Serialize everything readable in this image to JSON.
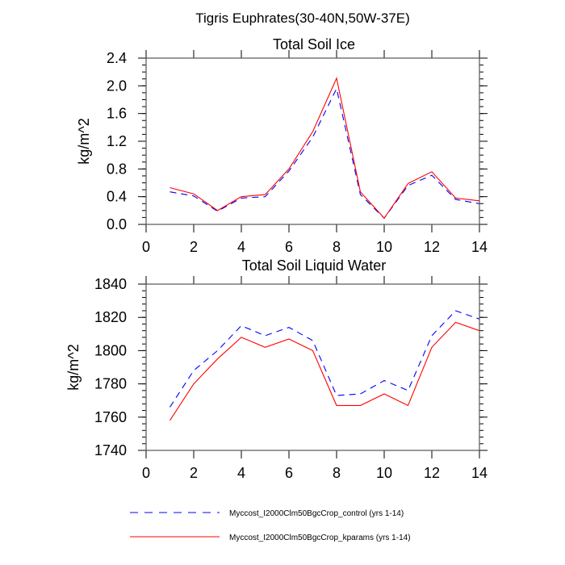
{
  "figure": {
    "suptitle": "Tigris Euphrates(30-40N,50W-37E)",
    "colors": {
      "control": "#0000ff",
      "kparams": "#ff0000",
      "axis": "#000000"
    }
  },
  "legend": {
    "placement": "bottom-center",
    "entries": [
      {
        "label": "Myccost_I2000Clm50BgcCrop_control (yrs 1-14)",
        "style": "dashed",
        "color": "#0000ff"
      },
      {
        "label": "Myccost_I2000Clm50BgcCrop_kparams (yrs 1-14)",
        "style": "solid",
        "color": "#ff0000"
      }
    ]
  },
  "chart_data": [
    {
      "type": "line",
      "title": "Total Soil Ice",
      "xlabel": "",
      "ylabel": "kg/m^2",
      "xlim": [
        0,
        14
      ],
      "ylim": [
        0,
        2.4
      ],
      "xticks": [
        0,
        2,
        4,
        6,
        8,
        10,
        12,
        14
      ],
      "xtick_labels": [
        "0",
        "2",
        "4",
        "6",
        "8",
        "10",
        "12",
        "14"
      ],
      "yticks": [
        0,
        0.4,
        0.8,
        1.2,
        1.6,
        2.0,
        2.4
      ],
      "ytick_labels": [
        "0.0",
        "0.4",
        "0.8",
        "1.2",
        "1.6",
        "2.0",
        "2.4"
      ],
      "yminor_step": 0.1,
      "grid": false,
      "x": [
        1,
        2,
        3,
        4,
        5,
        6,
        7,
        8,
        9,
        10,
        11,
        12,
        13,
        14
      ],
      "series": [
        {
          "name": "Myccost_I2000Clm50BgcCrop_control (yrs 1-14)",
          "style": "dashed",
          "color": "#0000ff",
          "values": [
            0.47,
            0.41,
            0.19,
            0.38,
            0.4,
            0.77,
            1.26,
            1.96,
            0.43,
            0.09,
            0.56,
            0.71,
            0.36,
            0.3
          ]
        },
        {
          "name": "Myccost_I2000Clm50BgcCrop_kparams (yrs 1-14)",
          "style": "solid",
          "color": "#ff0000",
          "values": [
            0.53,
            0.44,
            0.2,
            0.4,
            0.43,
            0.8,
            1.34,
            2.11,
            0.47,
            0.09,
            0.59,
            0.76,
            0.38,
            0.34
          ]
        }
      ]
    },
    {
      "type": "line",
      "title": "Total Soil Liquid Water",
      "xlabel": "",
      "ylabel": "kg/m^2",
      "xlim": [
        0,
        14
      ],
      "ylim": [
        1740,
        1840
      ],
      "xticks": [
        0,
        2,
        4,
        6,
        8,
        10,
        12,
        14
      ],
      "xtick_labels": [
        "0",
        "2",
        "4",
        "6",
        "8",
        "10",
        "12",
        "14"
      ],
      "yticks": [
        1740,
        1760,
        1780,
        1800,
        1820,
        1840
      ],
      "ytick_labels": [
        "1740",
        "1760",
        "1780",
        "1800",
        "1820",
        "1840"
      ],
      "yminor_step": 4,
      "grid": false,
      "x": [
        1,
        2,
        3,
        4,
        5,
        6,
        7,
        8,
        9,
        10,
        11,
        12,
        13,
        14
      ],
      "series": [
        {
          "name": "Myccost_I2000Clm50BgcCrop_control (yrs 1-14)",
          "style": "dashed",
          "color": "#0000ff",
          "values": [
            1766,
            1788,
            1800,
            1815,
            1809,
            1814,
            1806,
            1773,
            1774,
            1782,
            1776,
            1809,
            1824,
            1819
          ]
        },
        {
          "name": "Myccost_I2000Clm50BgcCrop_kparams (yrs 1-14)",
          "style": "solid",
          "color": "#ff0000",
          "values": [
            1758,
            1780,
            1795,
            1808,
            1802,
            1807,
            1800,
            1767,
            1767,
            1774,
            1767,
            1802,
            1817,
            1812
          ]
        }
      ]
    }
  ]
}
